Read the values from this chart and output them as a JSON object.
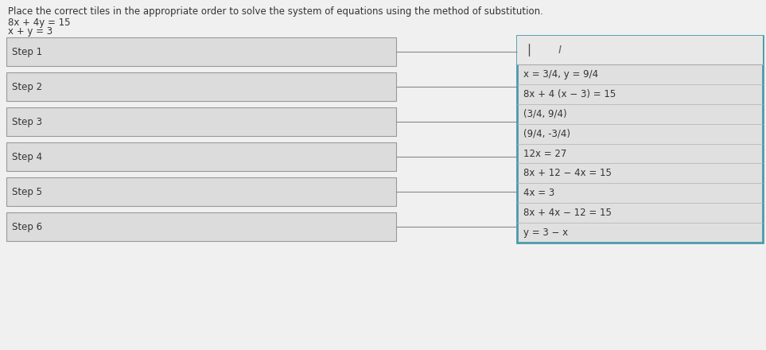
{
  "title": "Place the correct tiles in the appropriate order to solve the system of equations using the method of substitution.",
  "equations": [
    "8x + 4y = 15",
    "x + y = 3"
  ],
  "steps": [
    "Step 1",
    "Step 2",
    "Step 3",
    "Step 4",
    "Step 5",
    "Step 6"
  ],
  "tiles": [
    "x = 3/4, y = 9/4",
    "8x + 4 (x − 3) = 15",
    "(3/4, 9/4)",
    "(9/4, -3/4)",
    "12x = 27",
    "8x + 12 − 4x = 15",
    "4x = 3",
    "8x + 4x − 12 = 15",
    "y = 3 − x"
  ],
  "bg_color": "#c8c8c8",
  "page_bg": "#e8e8e8",
  "step_box_facecolor": "#dcdcdc",
  "step_box_edgecolor": "#999999",
  "tile_panel_facecolor": "#e0e0e0",
  "tile_panel_edgecolor": "#4a9aaa",
  "tile_header_facecolor": "#e8e8e8",
  "connector_color": "#888888",
  "text_color": "#333333",
  "title_fontsize": 8.5,
  "label_fontsize": 8.5,
  "tile_fontsize": 8.5,
  "fig_width": 9.63,
  "fig_height": 4.4,
  "dpi": 100
}
